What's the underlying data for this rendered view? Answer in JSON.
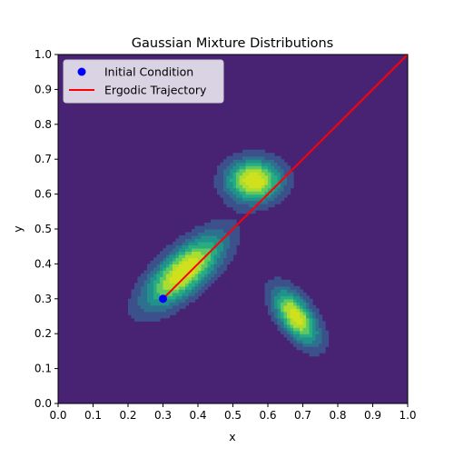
{
  "chart_data": {
    "type": "contour",
    "title": "Gaussian Mixture Distributions",
    "xlabel": "x",
    "ylabel": "y",
    "xlim": [
      0.0,
      1.0
    ],
    "ylim": [
      0.0,
      1.0
    ],
    "xticks": [
      "0.0",
      "0.1",
      "0.2",
      "0.3",
      "0.4",
      "0.5",
      "0.6",
      "0.7",
      "0.8",
      "0.9",
      "1.0"
    ],
    "yticks": [
      "0.0",
      "0.1",
      "0.2",
      "0.3",
      "0.4",
      "0.5",
      "0.6",
      "0.7",
      "0.8",
      "0.9",
      "1.0"
    ],
    "grid": false,
    "legend_position": "upper-left",
    "colormap": [
      "#482374",
      "#3c508b",
      "#2d718e",
      "#21918c",
      "#27ad81",
      "#5ec962",
      "#aadc32",
      "#cfe11c"
    ],
    "gaussians": [
      {
        "mean": [
          0.36,
          0.38
        ],
        "sx": 0.078,
        "sy": 0.072,
        "rho": 0.7,
        "weight": 1.0
      },
      {
        "mean": [
          0.56,
          0.64
        ],
        "sx": 0.055,
        "sy": 0.042,
        "rho": 0.0,
        "weight": 1.0
      },
      {
        "mean": [
          0.68,
          0.25
        ],
        "sx": 0.045,
        "sy": 0.055,
        "rho": -0.6,
        "weight": 0.95
      }
    ],
    "series": [
      {
        "name": "Initial Condition",
        "type": "scatter",
        "color": "#0000ff",
        "x": [
          0.3
        ],
        "y": [
          0.3
        ]
      },
      {
        "name": "Ergodic Trajectory",
        "type": "line",
        "color": "#ff0000",
        "x": [
          0.3,
          1.0
        ],
        "y": [
          0.3,
          1.0
        ]
      }
    ]
  }
}
